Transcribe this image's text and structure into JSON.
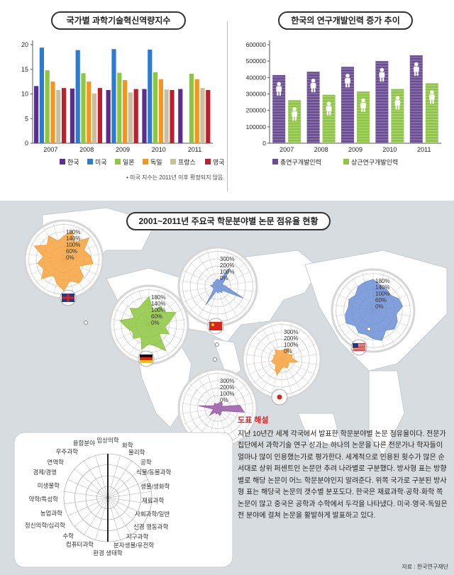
{
  "chart_data": [
    {
      "type": "bar",
      "title": "국가별 과학기술혁신역량지수",
      "categories": [
        "2007",
        "2008",
        "2009",
        "2010",
        "2011"
      ],
      "ylim": [
        0,
        20
      ],
      "yticks": [
        0,
        5,
        10,
        15,
        20
      ],
      "series": [
        {
          "name": "한국",
          "color": "#5b2d8e",
          "values": [
            11.6,
            11.1,
            10.8,
            11.0,
            11.0
          ]
        },
        {
          "name": "미국",
          "color": "#2b7bd0",
          "values": [
            19.4,
            18.9,
            19.1,
            19.0,
            null
          ]
        },
        {
          "name": "일본",
          "color": "#8dc63f",
          "values": [
            14.8,
            14.2,
            14.3,
            14.4,
            14.1
          ]
        },
        {
          "name": "독일",
          "color": "#f7941d",
          "values": [
            12.5,
            12.5,
            12.8,
            13.0,
            13.0
          ]
        },
        {
          "name": "프랑스",
          "color": "#c8bfa0",
          "values": [
            10.8,
            10.1,
            10.3,
            10.9,
            11.2
          ]
        },
        {
          "name": "영국",
          "color": "#be1e2d",
          "values": [
            11.2,
            11.2,
            11.0,
            10.8,
            10.8
          ]
        }
      ],
      "note": "• 미국 지수는 2011년 이후 확정되지 않음."
    },
    {
      "type": "bar",
      "title": "한국의 연구개발인력 증가 추이",
      "categories": [
        "2007",
        "2008",
        "2009",
        "2010",
        "2011"
      ],
      "ylim": [
        0,
        600000
      ],
      "yticks": [
        0,
        100000,
        200000,
        300000,
        400000,
        500000,
        600000
      ],
      "series": [
        {
          "name": "총연구개발인력",
          "color": "#6a4c93",
          "values": [
            415000,
            435000,
            465000,
            500000,
            535000
          ]
        },
        {
          "name": "상근연구개발인력",
          "color": "#8dc63f",
          "values": [
            262000,
            295000,
            315000,
            330000,
            365000
          ]
        }
      ]
    },
    {
      "type": "radar",
      "title": "2001~2011년 주요국 학문분야별 논문 점유율 현황",
      "charts": [
        {
          "country": "영국",
          "flag": "uk",
          "ring_labels": [
            "180%",
            "140%",
            "100%",
            "60%",
            "0%"
          ]
        },
        {
          "country": "독일",
          "flag": "de",
          "ring_labels": [
            "180%",
            "140%",
            "100%",
            "60%",
            "0%"
          ]
        },
        {
          "country": "중국",
          "flag": "cn",
          "ring_labels": [
            "300%",
            "200%",
            "100%",
            "0%"
          ]
        },
        {
          "country": "미국",
          "flag": "us",
          "ring_labels": [
            "180%",
            "140%",
            "100%",
            "60%",
            "0%"
          ]
        },
        {
          "country": "일본",
          "flag": "jp",
          "ring_labels": [
            "300%",
            "200%",
            "100%",
            "0%"
          ]
        },
        {
          "country": "한국",
          "flag": "kr",
          "ring_labels": [
            "300%",
            "200%",
            "100%",
            "0%"
          ]
        }
      ],
      "legend_fields": [
        "임상의학",
        "화학",
        "물리학",
        "공학",
        "식물/동물과학",
        "생물/생화학",
        "재료과학",
        "사회과학/일반",
        "신경 행동과학",
        "지구과학",
        "분자생물/유전학",
        "환경 생태학",
        "컴퓨터과학",
        "수학",
        "정신의학/심리학",
        "농업과학",
        "약학/특성학",
        "미생물학",
        "경제/경영",
        "면역학",
        "우주과학",
        "융합분야"
      ]
    }
  ],
  "titles": {
    "chart1": "국가별 과학기술혁신역량지수",
    "chart2": "한국의 연구개발인력 증가 추이",
    "map": "2001~2011년 주요국 학문분야별 논문 점유율 현황"
  },
  "explanation": {
    "heading": "도표 해설",
    "body": "지난 10년간 세계 각국에서 발표한 학문분야별 논문 점유율이다. 전문가집단에서 과학기술 연구 성과는 하나의 논문을 다른 전문가나 학자들이 얼마나 많이 인용했는가로 평가한다. 세계적으로 인용된 횟수가 많은 순서대로 상위 퍼센트인 논문만 추려 나라별로 구분했다. 방사형 표는 방향별로 해당 논문이 어느 학문분야인지 알려준다. 위쪽 국가로 구분된 방사형 표는 해당국 논문의 갯수별 분포도다. 한국은 재료과학·공학·화학 쪽 논문이 많고 중국은 공학과 수학에서 두각을 나타냈다. 미국·영국·독일은 전 분야에 걸쳐 논문을 활발하게 발표하고 있다."
  },
  "source": "자료 : 한국연구재단"
}
